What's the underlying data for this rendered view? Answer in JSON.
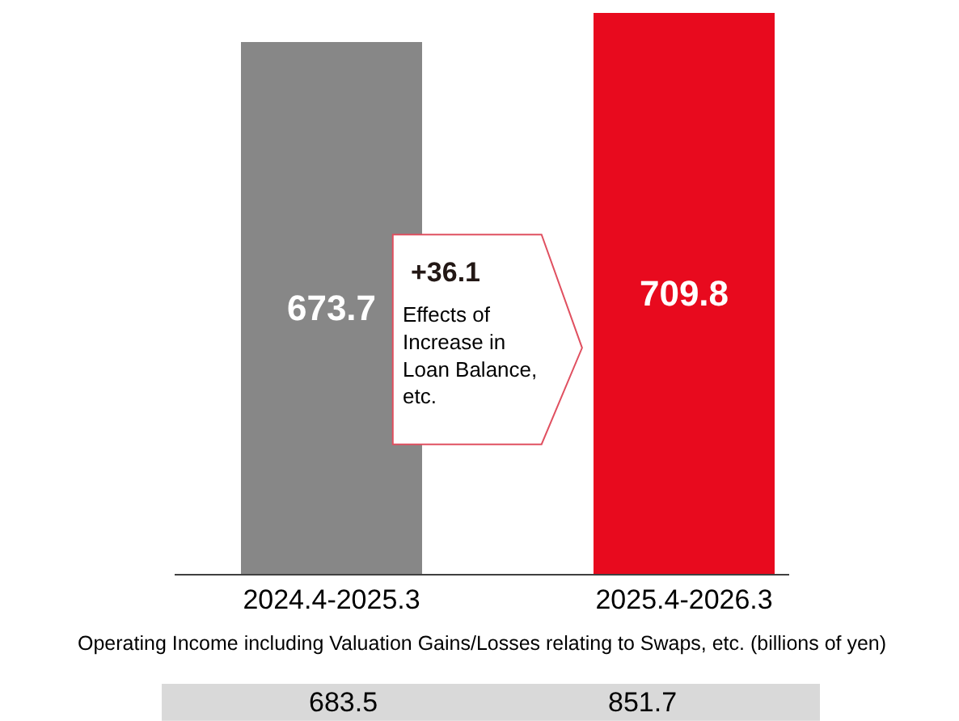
{
  "chart_data": {
    "type": "bar",
    "categories": [
      "2024.4-2025.3",
      "2025.4-2026.3"
    ],
    "values": [
      673.7,
      709.8
    ],
    "colors": [
      "#878787",
      "#e80a1e"
    ],
    "data_labels": true,
    "annotations": [
      "+36.1",
      "Effects of\nIncrease in\nLoan Balance,\netc.",
      "Operating Income including Valuation Gains/Losses relating to Swaps, etc. (billions of yen)",
      "683.5",
      "851.7"
    ]
  }
}
